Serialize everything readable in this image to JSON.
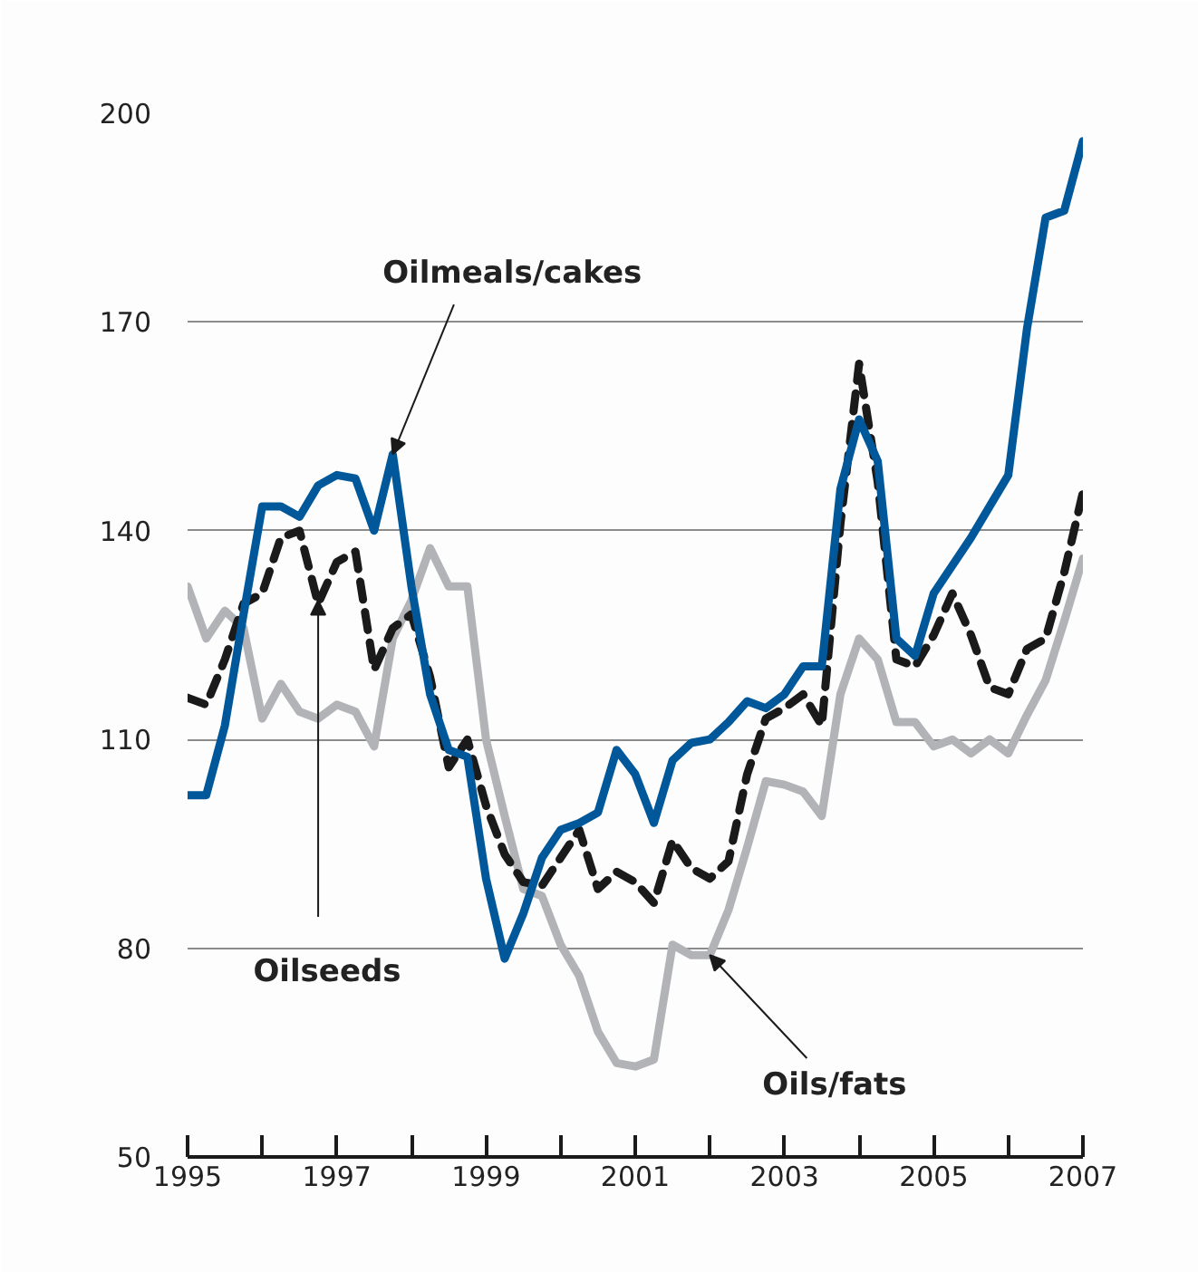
{
  "chart_data": {
    "type": "line",
    "x": [
      1995,
      1995.25,
      1995.5,
      1995.75,
      1996,
      1996.25,
      1996.5,
      1996.75,
      1997,
      1997.25,
      1997.5,
      1997.75,
      1998,
      1998.25,
      1998.5,
      1998.75,
      1999,
      1999.25,
      1999.5,
      1999.75,
      2000,
      2000.25,
      2000.5,
      2000.75,
      2001,
      2001.25,
      2001.5,
      2001.75,
      2002,
      2002.25,
      2002.5,
      2002.75,
      2003,
      2003.25,
      2003.5,
      2003.75,
      2004,
      2004.25,
      2004.5,
      2004.75,
      2005,
      2005.25,
      2005.5,
      2005.75,
      2006,
      2006.25,
      2006.5,
      2006.75,
      2007
    ],
    "series": [
      {
        "color": "#b1b3b6",
        "line_style": "solid",
        "values": [
          132,
          124.5,
          128.5,
          126,
          113,
          118,
          114,
          113,
          115,
          114,
          109,
          124.5,
          130,
          137.5,
          132,
          132,
          110,
          99,
          88.5,
          87.5,
          80.5,
          76,
          68,
          63.5,
          63,
          64,
          80.5,
          79,
          79,
          85.5,
          94.5,
          104,
          103.5,
          102.5,
          99,
          116.5,
          124.5,
          121.5,
          112.5,
          112.5,
          109,
          110,
          108,
          110,
          108,
          113.5,
          118.5,
          127,
          136
        ]
      },
      {
        "color": "#1a1a1a",
        "line_style": "dashed",
        "values": [
          116,
          115,
          121.5,
          129.5,
          131,
          139,
          140,
          129.5,
          135.5,
          137,
          120,
          126,
          128,
          119,
          106,
          110,
          100.5,
          93.5,
          89.5,
          89,
          93,
          97,
          88.5,
          91,
          89.5,
          86.5,
          95.5,
          91.5,
          90,
          92.5,
          105,
          113,
          114.5,
          116.5,
          112,
          141,
          164,
          147,
          121.5,
          120.5,
          125,
          131,
          125,
          117.5,
          116.5,
          123,
          124.5,
          134,
          145.5
        ]
      },
      {
        "color": "#00589a",
        "line_style": "solid",
        "values": [
          102,
          102,
          112,
          128,
          143.5,
          143.5,
          142,
          146.5,
          148,
          147.5,
          140,
          151,
          132,
          116.5,
          108.5,
          107.5,
          90,
          78.5,
          85,
          93,
          97,
          98,
          99.5,
          108.5,
          105,
          98,
          107,
          109.5,
          110,
          112.5,
          115.5,
          114.5,
          116.5,
          120.5,
          120.5,
          146,
          156,
          150,
          124.5,
          122,
          131,
          135,
          139,
          143.5,
          148,
          169,
          185,
          186,
          196
        ]
      }
    ],
    "xlim": [
      1995,
      2007
    ],
    "xticks": [
      1995,
      {
        "value": 1996,
        "label": null
      },
      1997,
      {
        "value": 1998,
        "label": null
      },
      1999,
      {
        "value": 2000,
        "label": null
      },
      2001,
      {
        "value": 2002,
        "label": null
      },
      2003,
      {
        "value": 2004,
        "label": null
      },
      2005,
      {
        "value": 2006,
        "label": null
      },
      2007
    ],
    "ylim": [
      50,
      200
    ],
    "yticks": [
      50,
      80,
      110,
      140,
      170,
      200
    ],
    "grid": "y",
    "annotations": [
      {
        "text": "Oilmeals/cakes",
        "x": 1997.75,
        "y": 151
      },
      {
        "text": "Oilseeds",
        "x": 1996.75,
        "y": 130
      },
      {
        "text": "Oils/fats",
        "x": 2002,
        "y": 79
      }
    ]
  }
}
